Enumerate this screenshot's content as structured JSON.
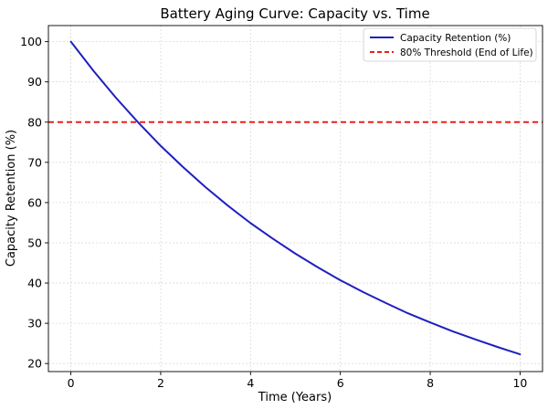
{
  "chart_data": {
    "type": "line",
    "title": "Battery Aging Curve: Capacity vs. Time",
    "xlabel": "Time (Years)",
    "ylabel": "Capacity Retention (%)",
    "xlim": [
      -0.5,
      10.5
    ],
    "ylim": [
      18,
      104
    ],
    "xticks": [
      0,
      2,
      4,
      6,
      8,
      10
    ],
    "yticks": [
      20,
      30,
      40,
      50,
      60,
      70,
      80,
      90,
      100
    ],
    "grid": true,
    "legend_position": "top-right",
    "series": [
      {
        "name": "Capacity Retention (%)",
        "color": "#1f1fbf",
        "style": "solid",
        "x": [
          0,
          0.5,
          1,
          1.5,
          2,
          2.5,
          3,
          3.5,
          4,
          4.5,
          5,
          5.5,
          6,
          6.5,
          7,
          7.5,
          8,
          8.5,
          9,
          9.5,
          10
        ],
        "y": [
          100,
          92.8,
          86.1,
          79.9,
          74.1,
          68.8,
          63.8,
          59.2,
          54.9,
          51.0,
          47.3,
          43.9,
          40.7,
          37.8,
          35.1,
          32.5,
          30.2,
          28.0,
          26.0,
          24.1,
          22.3
        ]
      },
      {
        "name": "80% Threshold (End of Life)",
        "color": "#e8201c",
        "style": "dashed",
        "x": [
          -0.5,
          10.5
        ],
        "y": [
          80,
          80
        ]
      }
    ]
  }
}
